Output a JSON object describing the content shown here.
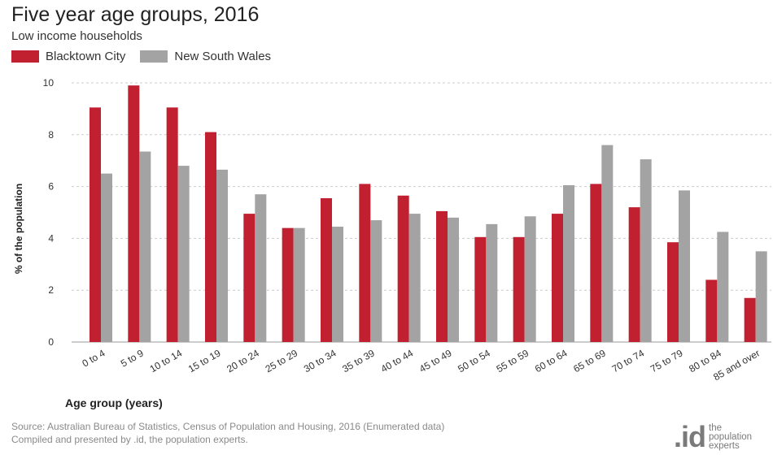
{
  "header": {
    "title": "Five year age groups, 2016",
    "subtitle": "Low income households"
  },
  "colors": {
    "blacktown": "#c0202f",
    "nsw": "#a3a3a3",
    "grid": "#cccccc"
  },
  "chart_data": {
    "type": "bar",
    "categories": [
      "0 to 4",
      "5 to 9",
      "10 to 14",
      "15 to 19",
      "20 to 24",
      "25 to 29",
      "30 to 34",
      "35 to 39",
      "40 to 44",
      "45 to 49",
      "50 to 54",
      "55 to 59",
      "60 to 64",
      "65 to 69",
      "70 to 74",
      "75 to 79",
      "80 to 84",
      "85 and over"
    ],
    "series": [
      {
        "name": "Blacktown City",
        "values": [
          9.05,
          9.9,
          9.05,
          8.1,
          4.95,
          4.4,
          5.55,
          6.1,
          5.65,
          5.05,
          4.05,
          4.05,
          4.95,
          6.1,
          5.2,
          3.85,
          2.4,
          1.7
        ]
      },
      {
        "name": "New South Wales",
        "values": [
          6.5,
          7.35,
          6.8,
          6.65,
          5.7,
          4.4,
          4.45,
          4.7,
          4.95,
          4.8,
          4.55,
          4.85,
          6.05,
          7.6,
          7.05,
          5.85,
          4.25,
          3.5
        ]
      }
    ],
    "ylabel": "% of the population",
    "xlabel": "Age group (years)",
    "ylim": [
      0,
      10
    ],
    "yticks": [
      "0",
      "2",
      "4",
      "6",
      "8",
      "10"
    ],
    "grid": true,
    "legend": "top-left"
  },
  "footer": {
    "source_line1": "Source: Australian Bureau of Statistics, Census of Population and Housing, 2016 (Enumerated data)",
    "source_line2": "Compiled and presented by .id, the population experts.",
    "logo_mark": ".id",
    "logo_line1": "the",
    "logo_line2": "population",
    "logo_line3": "experts"
  }
}
